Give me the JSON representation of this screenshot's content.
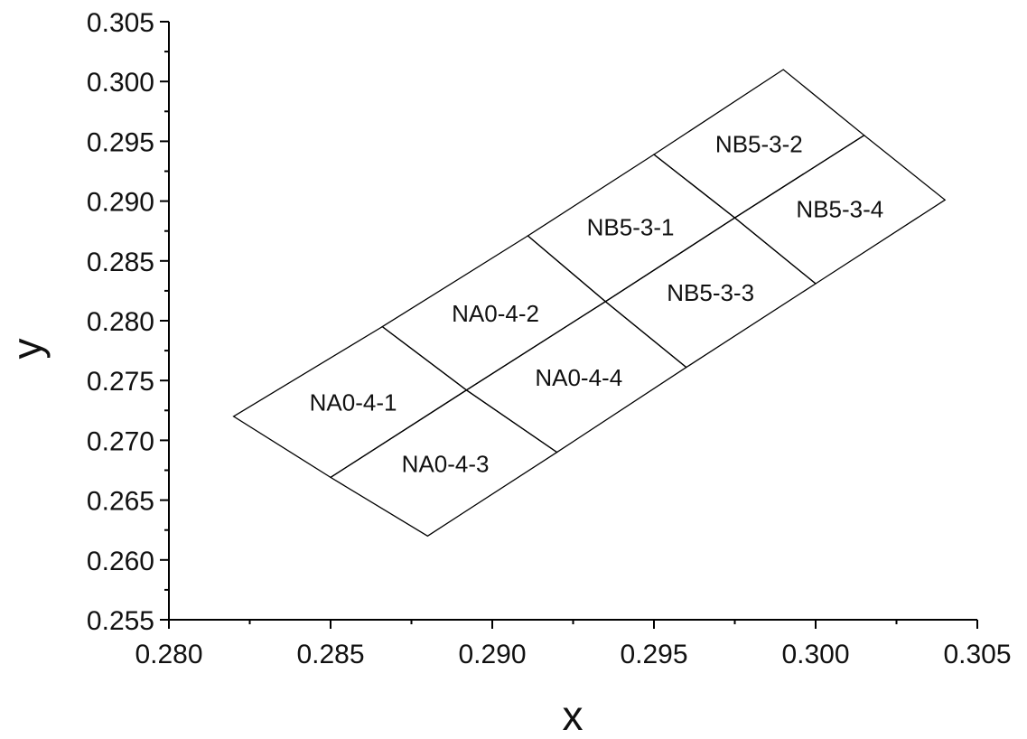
{
  "chart_data": {
    "type": "diagram",
    "xlabel": "x",
    "ylabel": "y",
    "xlim": [
      0.28,
      0.305
    ],
    "ylim": [
      0.255,
      0.305
    ],
    "x_ticks": [
      "0.280",
      "0.285",
      "0.290",
      "0.295",
      "0.300",
      "0.305"
    ],
    "y_ticks": [
      "0.255",
      "0.260",
      "0.265",
      "0.270",
      "0.275",
      "0.280",
      "0.285",
      "0.290",
      "0.295",
      "0.300",
      "0.305"
    ],
    "grid": false,
    "bins": [
      {
        "name": "NA0-4-1",
        "corners": [
          [
            0.282,
            0.272
          ],
          [
            0.2866,
            0.2795
          ],
          [
            0.2892,
            0.2742
          ],
          [
            0.285,
            0.2669
          ]
        ]
      },
      {
        "name": "NA0-4-2",
        "corners": [
          [
            0.2866,
            0.2795
          ],
          [
            0.2911,
            0.2871
          ],
          [
            0.2935,
            0.2816
          ],
          [
            0.2892,
            0.2742
          ]
        ]
      },
      {
        "name": "NA0-4-3",
        "corners": [
          [
            0.285,
            0.2669
          ],
          [
            0.2892,
            0.2742
          ],
          [
            0.292,
            0.269
          ],
          [
            0.288,
            0.262
          ]
        ]
      },
      {
        "name": "NA0-4-4",
        "corners": [
          [
            0.2892,
            0.2742
          ],
          [
            0.2935,
            0.2816
          ],
          [
            0.296,
            0.2761
          ],
          [
            0.292,
            0.269
          ]
        ]
      },
      {
        "name": "NB5-3-1",
        "corners": [
          [
            0.2911,
            0.2871
          ],
          [
            0.295,
            0.2939
          ],
          [
            0.2975,
            0.2886
          ],
          [
            0.2935,
            0.2816
          ]
        ]
      },
      {
        "name": "NB5-3-2",
        "corners": [
          [
            0.295,
            0.2939
          ],
          [
            0.299,
            0.301
          ],
          [
            0.3015,
            0.2955
          ],
          [
            0.2975,
            0.2886
          ]
        ]
      },
      {
        "name": "NB5-3-3",
        "corners": [
          [
            0.2935,
            0.2816
          ],
          [
            0.2975,
            0.2886
          ],
          [
            0.3,
            0.2831
          ],
          [
            0.296,
            0.2761
          ]
        ]
      },
      {
        "name": "NB5-3-4",
        "corners": [
          [
            0.2975,
            0.2886
          ],
          [
            0.3015,
            0.2955
          ],
          [
            0.304,
            0.2901
          ],
          [
            0.3,
            0.2831
          ]
        ]
      }
    ]
  }
}
